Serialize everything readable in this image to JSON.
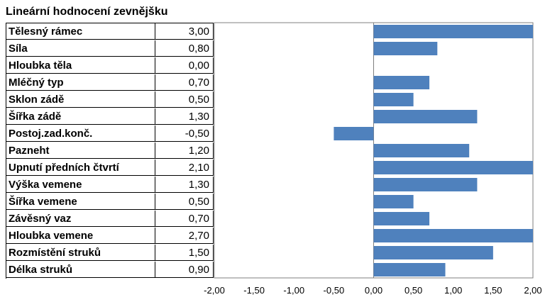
{
  "chart_data": {
    "type": "bar",
    "orientation": "horizontal",
    "title": "Lineární hodnocení zevnějšku",
    "categories": [
      "Tělesný rámec",
      "Síla",
      "Hloubka těla",
      "Mléčný typ",
      "Sklon zádě",
      "Šířka zádě",
      "Postoj.zad.konč.",
      "Pazneht",
      "Upnutí předních čtvrtí",
      "Výška vemene",
      "Šířka vemene",
      "Závěsný vaz",
      "Hloubka vemene",
      "Rozmístění struků",
      "Délka struků"
    ],
    "values": [
      3.0,
      0.8,
      0.0,
      0.7,
      0.5,
      1.3,
      -0.5,
      1.2,
      2.1,
      1.3,
      0.5,
      0.7,
      2.7,
      1.5,
      0.9
    ],
    "value_labels": [
      "3,00",
      "0,80",
      "0,00",
      "0,70",
      "0,50",
      "1,30",
      "-0,50",
      "1,20",
      "2,10",
      "1,30",
      "0,50",
      "0,70",
      "2,70",
      "1,50",
      "0,90"
    ],
    "xlim": [
      -2,
      2
    ],
    "xticks": [
      "-2,00",
      "-1,50",
      "-1,00",
      "-0,50",
      "0,00",
      "0,50",
      "1,00",
      "1,50",
      "2,00"
    ],
    "bar_color": "#4f81bd",
    "grid": false
  }
}
